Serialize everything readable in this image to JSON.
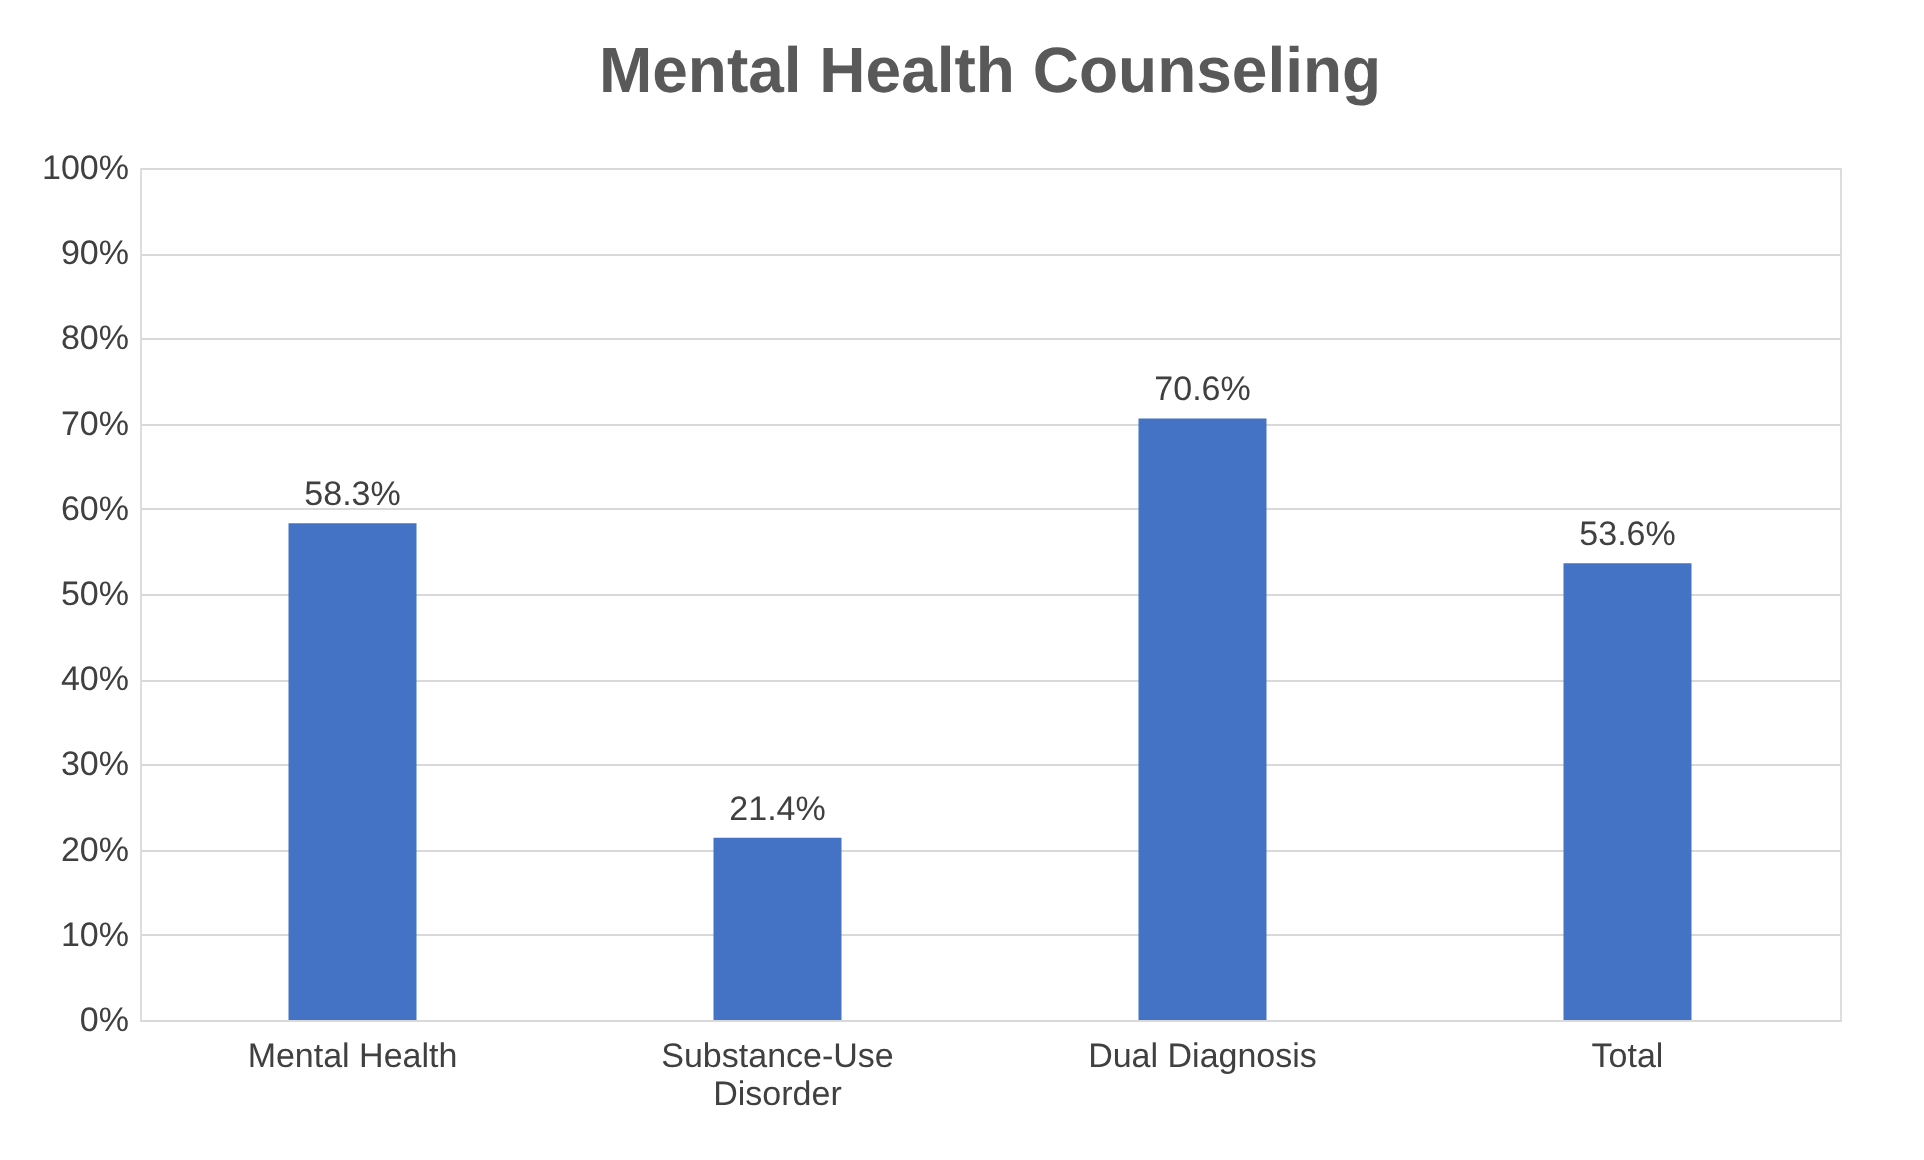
{
  "chart_data": {
    "type": "bar",
    "title": "Mental Health Counseling",
    "categories": [
      "Mental Health",
      "Substance-Use Disorder",
      "Dual Diagnosis",
      "Total"
    ],
    "values": [
      58.3,
      21.4,
      70.6,
      53.6
    ],
    "value_labels": [
      "58.3%",
      "21.4%",
      "70.6%",
      "53.6%"
    ],
    "color": "#4472c4",
    "ylim": [
      0,
      100
    ],
    "yticks": [
      {
        "value": 0,
        "label": "0%"
      },
      {
        "value": 10,
        "label": "10%"
      },
      {
        "value": 20,
        "label": "20%"
      },
      {
        "value": 30,
        "label": "30%"
      },
      {
        "value": 40,
        "label": "40%"
      },
      {
        "value": 50,
        "label": "50%"
      },
      {
        "value": 60,
        "label": "60%"
      },
      {
        "value": 70,
        "label": "70%"
      },
      {
        "value": 80,
        "label": "80%"
      },
      {
        "value": 90,
        "label": "90%"
      },
      {
        "value": 100,
        "label": "100%"
      }
    ],
    "grid": "y"
  }
}
